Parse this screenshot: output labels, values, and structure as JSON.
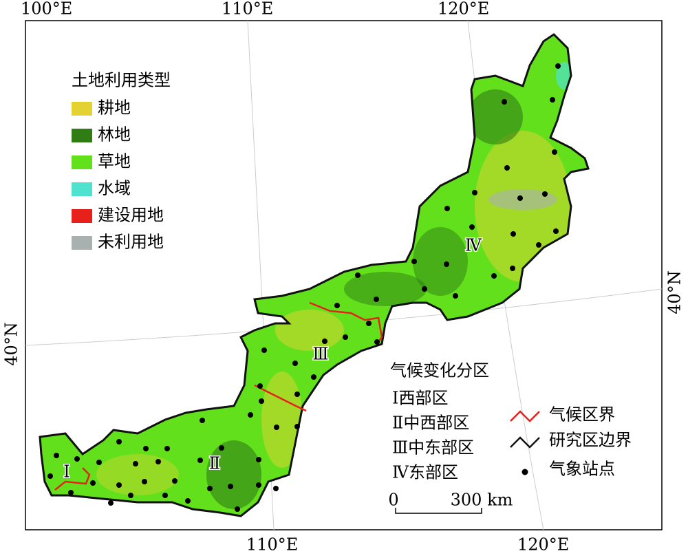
{
  "graticule_labels": {
    "top": [
      "100°E",
      "110°E",
      "120°E"
    ],
    "bottom": [
      "110°E",
      "120°E"
    ],
    "left": "40°N",
    "right": "40°N"
  },
  "land_use_legend": {
    "title": "土地利用类型",
    "items": [
      {
        "label": "耕地",
        "color": "#e3d232"
      },
      {
        "label": "林地",
        "color": "#2f7d14"
      },
      {
        "label": "草地",
        "color": "#62e01c"
      },
      {
        "label": "水域",
        "color": "#4fe3cf"
      },
      {
        "label": "建设用地",
        "color": "#e8201c"
      },
      {
        "label": "未利用地",
        "color": "#a9b1b0"
      }
    ]
  },
  "climate_legend": {
    "title": "气候变化分区",
    "items": [
      "Ⅰ西部区",
      "Ⅱ中西部区",
      "Ⅲ中东部区",
      "Ⅳ东部区"
    ]
  },
  "symbol_legend": [
    "气候区界",
    "研究区边界",
    "气象站点"
  ],
  "scale_bar": {
    "start": "0",
    "end": "300 km"
  },
  "region_labels": [
    "Ⅰ",
    "Ⅱ",
    "Ⅲ",
    "Ⅳ"
  ]
}
